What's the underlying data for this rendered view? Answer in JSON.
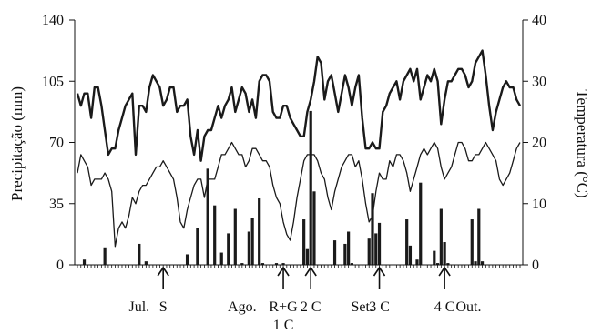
{
  "chart_data": {
    "type": "bar+line",
    "title": "",
    "ylabel_left": "Precipitação (mm)",
    "ylabel_right": "Temperatura (°C)",
    "ylim_left": [
      0,
      140
    ],
    "ylim_right": [
      0,
      40
    ],
    "yticks_left": [
      "0",
      "35",
      "70",
      "105",
      "140"
    ],
    "yticks_right": [
      "0",
      "10",
      "20",
      "30",
      "40"
    ],
    "x_days": 130,
    "month_labels": [
      {
        "day": 18,
        "label": "Jul."
      },
      {
        "day": 48,
        "label": "Ago."
      },
      {
        "day": 83,
        "label": "Set."
      },
      {
        "day": 114,
        "label": "Out."
      }
    ],
    "events": [
      {
        "day": 25,
        "label": "S",
        "label2": ""
      },
      {
        "day": 60,
        "label": "R+G",
        "label2": "1 C"
      },
      {
        "day": 68,
        "label": "2 C",
        "label2": ""
      },
      {
        "day": 88,
        "label": "3 C",
        "label2": ""
      },
      {
        "day": 107,
        "label": "4 C",
        "label2": ""
      }
    ],
    "grid": false,
    "legend": "none",
    "colors": {
      "bars": "#1a1a1a",
      "lines": "#1a1a1a"
    },
    "precipitation": {
      "name": "",
      "days": [
        2,
        8,
        18,
        20,
        32,
        35,
        38,
        40,
        42,
        44,
        46,
        48,
        50,
        51,
        53,
        54,
        58,
        60,
        66,
        67,
        68,
        69,
        75,
        78,
        79,
        80,
        85,
        86,
        87,
        88,
        96,
        97,
        99,
        100,
        104,
        105,
        106,
        107,
        108,
        115,
        116,
        117,
        118
      ],
      "values": [
        3,
        10,
        12,
        2,
        6,
        21,
        55,
        34,
        7,
        18,
        32,
        1,
        19,
        27,
        38,
        1,
        1,
        1,
        26,
        9,
        88,
        42,
        14,
        12,
        19,
        1,
        15,
        41,
        18,
        24,
        26,
        11,
        3,
        47,
        8,
        1,
        32,
        13,
        1,
        26,
        2,
        32,
        2
      ]
    },
    "tmax": {
      "name": "",
      "days": [
        0,
        1,
        2,
        3,
        4,
        5,
        6,
        7,
        8,
        9,
        10,
        11,
        12,
        13,
        14,
        15,
        16,
        17,
        18,
        19,
        20,
        21,
        22,
        23,
        24,
        25,
        26,
        27,
        28,
        29,
        30,
        31,
        32,
        33,
        34,
        35,
        36,
        37,
        38,
        39,
        40,
        41,
        42,
        43,
        44,
        45,
        46,
        47,
        48,
        49,
        50,
        51,
        52,
        53,
        54,
        55,
        56,
        57,
        58,
        59,
        60,
        61,
        62,
        63,
        64,
        65,
        66,
        67,
        68,
        69,
        70,
        71,
        72,
        73,
        74,
        75,
        76,
        77,
        78,
        79,
        80,
        81,
        82,
        83,
        84,
        85,
        86,
        87,
        88,
        89,
        90,
        91,
        92,
        93,
        94,
        95,
        96,
        97,
        98,
        99,
        100,
        101,
        102,
        103,
        104,
        105,
        106,
        107,
        108,
        109,
        110,
        111,
        112,
        113,
        114,
        115,
        116,
        117,
        118,
        119,
        120,
        121,
        122,
        123,
        124,
        125,
        126,
        127,
        128,
        129
      ],
      "values": [
        28,
        26,
        28,
        28,
        24,
        29,
        29,
        26,
        22,
        18,
        19,
        19,
        22,
        24,
        26,
        27,
        28,
        18,
        26,
        26,
        25,
        29,
        31,
        30,
        29,
        26,
        27,
        29,
        29,
        25,
        26,
        26,
        27,
        21,
        18,
        22,
        17,
        21,
        22,
        22,
        24,
        26,
        24,
        26,
        27,
        29,
        25,
        27,
        29,
        28,
        25,
        27,
        24,
        30,
        31,
        31,
        30,
        25,
        24,
        24,
        26,
        26,
        24,
        23,
        22,
        21,
        21,
        25,
        27,
        30,
        34,
        33,
        27,
        30,
        31,
        28,
        25,
        28,
        31,
        29,
        26,
        29,
        31,
        24,
        19,
        19,
        20,
        19,
        19,
        25,
        26,
        28,
        29,
        30,
        27,
        30,
        31,
        32,
        30,
        32,
        27,
        29,
        31,
        30,
        32,
        30,
        23,
        27,
        30,
        30,
        31,
        32,
        32,
        31,
        29,
        30,
        33,
        34,
        35,
        31,
        26,
        22,
        25,
        27,
        29,
        30,
        29,
        29,
        27,
        26
      ]
    },
    "tmin": {
      "name": "",
      "days": [
        0,
        1,
        2,
        3,
        4,
        5,
        6,
        7,
        8,
        9,
        10,
        11,
        12,
        13,
        14,
        15,
        16,
        17,
        18,
        19,
        20,
        21,
        22,
        23,
        24,
        25,
        26,
        27,
        28,
        29,
        30,
        31,
        32,
        33,
        34,
        35,
        36,
        37,
        38,
        39,
        40,
        41,
        42,
        43,
        44,
        45,
        46,
        47,
        48,
        49,
        50,
        51,
        52,
        53,
        54,
        55,
        56,
        57,
        58,
        59,
        60,
        61,
        62,
        63,
        64,
        65,
        66,
        67,
        68,
        69,
        70,
        71,
        72,
        73,
        74,
        75,
        76,
        77,
        78,
        79,
        80,
        81,
        82,
        83,
        84,
        85,
        86,
        87,
        88,
        89,
        90,
        91,
        92,
        93,
        94,
        95,
        96,
        97,
        98,
        99,
        100,
        101,
        102,
        103,
        104,
        105,
        106,
        107,
        108,
        109,
        110,
        111,
        112,
        113,
        114,
        115,
        116,
        117,
        118,
        119,
        120,
        121,
        122,
        123,
        124,
        125,
        126,
        127,
        128,
        129
      ],
      "values": [
        15,
        18,
        17,
        16,
        13,
        14,
        14,
        14,
        15,
        14,
        12,
        3,
        6,
        7,
        6,
        8,
        11,
        10,
        12,
        13,
        13,
        14,
        15,
        16,
        16,
        17,
        16,
        15,
        14,
        11,
        7,
        6,
        9,
        11,
        13,
        14,
        14,
        11,
        14,
        14,
        14,
        16,
        18,
        18,
        19,
        20,
        19,
        18,
        18,
        16,
        17,
        19,
        19,
        18,
        17,
        17,
        16,
        13,
        11,
        10,
        7,
        5,
        4,
        7,
        11,
        14,
        17,
        18,
        18,
        18,
        17,
        15,
        14,
        11,
        9,
        12,
        14,
        16,
        17,
        18,
        18,
        16,
        17,
        14,
        10,
        7,
        8,
        12,
        15,
        14,
        14,
        17,
        16,
        18,
        18,
        17,
        15,
        12,
        14,
        16,
        18,
        19,
        18,
        19,
        20,
        19,
        16,
        14,
        15,
        16,
        18,
        20,
        20,
        19,
        17,
        17,
        18,
        18,
        19,
        20,
        19,
        18,
        17,
        14,
        13,
        14,
        15,
        17,
        19,
        20
      ]
    }
  }
}
